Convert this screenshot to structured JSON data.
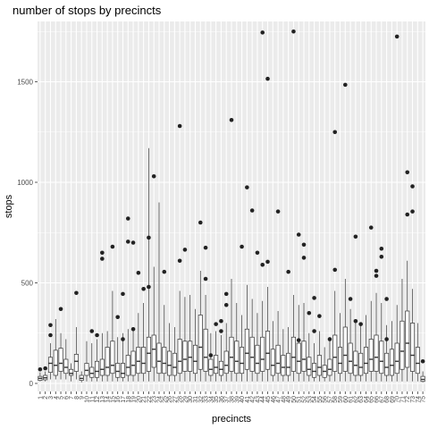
{
  "chart_data": {
    "type": "boxplot",
    "title": "number of stops by precincts",
    "xlabel": "precincts",
    "ylabel": "stops",
    "ylim": [
      -40,
      1800
    ],
    "yticks": [
      0,
      500,
      1000,
      1500
    ],
    "grid": true,
    "colors": {
      "panel": "#ebebeb",
      "grid_major": "#ffffff",
      "box_fill": "#ffffff",
      "box_line": "#333333",
      "outlier": "#222222"
    },
    "categories": [
      "1",
      "2",
      "3",
      "4",
      "5",
      "6",
      "7",
      "8",
      "9",
      "10",
      "11",
      "12",
      "13",
      "14",
      "15",
      "16",
      "17",
      "18",
      "19",
      "20",
      "21",
      "22",
      "23",
      "24",
      "25",
      "26",
      "27",
      "28",
      "29",
      "30",
      "31",
      "32",
      "33",
      "34",
      "35",
      "36",
      "37",
      "38",
      "39",
      "40",
      "41",
      "42",
      "43",
      "44",
      "45",
      "46",
      "47",
      "48",
      "49",
      "50",
      "51",
      "52",
      "53",
      "54",
      "55",
      "56",
      "57",
      "58",
      "59",
      "60",
      "61",
      "62",
      "63",
      "64",
      "65",
      "66",
      "67",
      "68",
      "69",
      "70",
      "71",
      "72",
      "73",
      "74",
      "75"
    ],
    "boxes": [
      {
        "min": 10,
        "q1": 15,
        "median": 25,
        "q3": 35,
        "max": 55,
        "outliers": [
          70
        ]
      },
      {
        "min": 10,
        "q1": 18,
        "median": 28,
        "q3": 40,
        "max": 60,
        "outliers": [
          75
        ]
      },
      {
        "min": 20,
        "q1": 55,
        "median": 100,
        "q3": 130,
        "max": 200,
        "outliers": [
          240,
          290
        ]
      },
      {
        "min": 20,
        "q1": 40,
        "median": 90,
        "q3": 165,
        "max": 320,
        "outliers": []
      },
      {
        "min": 20,
        "q1": 60,
        "median": 100,
        "q3": 175,
        "max": 250,
        "outliers": [
          370
        ]
      },
      {
        "min": 20,
        "q1": 50,
        "median": 80,
        "q3": 120,
        "max": 220,
        "outliers": []
      },
      {
        "min": 10,
        "q1": 40,
        "median": 50,
        "q3": 70,
        "max": 100,
        "outliers": []
      },
      {
        "min": 20,
        "q1": 60,
        "median": 110,
        "q3": 145,
        "max": 280,
        "outliers": [
          450
        ]
      },
      {
        "min": 5,
        "q1": 15,
        "median": 25,
        "q3": 40,
        "max": 60,
        "outliers": []
      },
      {
        "min": 10,
        "q1": 40,
        "median": 65,
        "q3": 100,
        "max": 210,
        "outliers": []
      },
      {
        "min": 10,
        "q1": 30,
        "median": 50,
        "q3": 80,
        "max": 200,
        "outliers": [
          260
        ]
      },
      {
        "min": 10,
        "q1": 30,
        "median": 60,
        "q3": 110,
        "max": 220,
        "outliers": [
          240
        ]
      },
      {
        "min": 10,
        "q1": 40,
        "median": 70,
        "q3": 120,
        "max": 250,
        "outliers": [
          620,
          650
        ]
      },
      {
        "min": 10,
        "q1": 40,
        "median": 80,
        "q3": 180,
        "max": 260,
        "outliers": []
      },
      {
        "min": 10,
        "q1": 50,
        "median": 90,
        "q3": 210,
        "max": 460,
        "outliers": [
          680
        ]
      },
      {
        "min": 10,
        "q1": 30,
        "median": 60,
        "q3": 100,
        "max": 230,
        "outliers": [
          330
        ]
      },
      {
        "min": 10,
        "q1": 30,
        "median": 50,
        "q3": 100,
        "max": 250,
        "outliers": [
          445,
          220
        ]
      },
      {
        "min": 10,
        "q1": 40,
        "median": 80,
        "q3": 140,
        "max": 270,
        "outliers": [
          820,
          705
        ]
      },
      {
        "min": 10,
        "q1": 40,
        "median": 90,
        "q3": 160,
        "max": 280,
        "outliers": [
          700,
          270
        ]
      },
      {
        "min": 10,
        "q1": 50,
        "median": 110,
        "q3": 180,
        "max": 350,
        "outliers": [
          550
        ]
      },
      {
        "min": 10,
        "q1": 50,
        "median": 100,
        "q3": 180,
        "max": 400,
        "outliers": [
          470
        ]
      },
      {
        "min": 10,
        "q1": 60,
        "median": 150,
        "q3": 230,
        "max": 1170,
        "outliers": [
          480,
          725
        ]
      },
      {
        "min": 10,
        "q1": 80,
        "median": 170,
        "q3": 240,
        "max": 580,
        "outliers": [
          1030
        ]
      },
      {
        "min": 10,
        "q1": 50,
        "median": 110,
        "q3": 200,
        "max": 900,
        "outliers": []
      },
      {
        "min": 10,
        "q1": 50,
        "median": 100,
        "q3": 180,
        "max": 390,
        "outliers": [
          555
        ]
      },
      {
        "min": 10,
        "q1": 40,
        "median": 90,
        "q3": 160,
        "max": 300,
        "outliers": []
      },
      {
        "min": 10,
        "q1": 40,
        "median": 80,
        "q3": 150,
        "max": 280,
        "outliers": []
      },
      {
        "min": 10,
        "q1": 50,
        "median": 110,
        "q3": 220,
        "max": 460,
        "outliers": [
          1280,
          610
        ]
      },
      {
        "min": 10,
        "q1": 60,
        "median": 120,
        "q3": 210,
        "max": 430,
        "outliers": [
          665
        ]
      },
      {
        "min": 10,
        "q1": 60,
        "median": 130,
        "q3": 210,
        "max": 440,
        "outliers": []
      },
      {
        "min": 10,
        "q1": 50,
        "median": 110,
        "q3": 190,
        "max": 370,
        "outliers": []
      },
      {
        "min": 10,
        "q1": 70,
        "median": 180,
        "q3": 340,
        "max": 560,
        "outliers": [
          800
        ]
      },
      {
        "min": 10,
        "q1": 60,
        "median": 130,
        "q3": 270,
        "max": 440,
        "outliers": [
          675,
          520
        ]
      },
      {
        "min": 10,
        "q1": 40,
        "median": 70,
        "q3": 120,
        "max": 250,
        "outliers": [
          140
        ]
      },
      {
        "min": 10,
        "q1": 50,
        "median": 80,
        "q3": 140,
        "max": 260,
        "outliers": [
          295
        ]
      },
      {
        "min": 10,
        "q1": 40,
        "median": 70,
        "q3": 110,
        "max": 240,
        "outliers": [
          310,
          260
        ]
      },
      {
        "min": 10,
        "q1": 50,
        "median": 90,
        "q3": 160,
        "max": 300,
        "outliers": [
          445,
          390
        ]
      },
      {
        "min": 10,
        "q1": 60,
        "median": 130,
        "q3": 230,
        "max": 520,
        "outliers": [
          1310
        ]
      },
      {
        "min": 10,
        "q1": 50,
        "median": 110,
        "q3": 210,
        "max": 400,
        "outliers": []
      },
      {
        "min": 10,
        "q1": 50,
        "median": 100,
        "q3": 180,
        "max": 340,
        "outliers": [
          680
        ]
      },
      {
        "min": 10,
        "q1": 70,
        "median": 150,
        "q3": 270,
        "max": 490,
        "outliers": [
          975
        ]
      },
      {
        "min": 10,
        "q1": 60,
        "median": 130,
        "q3": 230,
        "max": 420,
        "outliers": [
          860
        ]
      },
      {
        "min": 10,
        "q1": 50,
        "median": 100,
        "q3": 190,
        "max": 350,
        "outliers": [
          650
        ]
      },
      {
        "min": 10,
        "q1": 60,
        "median": 120,
        "q3": 230,
        "max": 410,
        "outliers": [
          1745,
          590
        ]
      },
      {
        "min": 10,
        "q1": 70,
        "median": 150,
        "q3": 260,
        "max": 480,
        "outliers": [
          1515,
          605
        ]
      },
      {
        "min": 10,
        "q1": 40,
        "median": 90,
        "q3": 170,
        "max": 310,
        "outliers": []
      },
      {
        "min": 10,
        "q1": 50,
        "median": 100,
        "q3": 190,
        "max": 360,
        "outliers": [
          855
        ]
      },
      {
        "min": 10,
        "q1": 40,
        "median": 80,
        "q3": 140,
        "max": 270,
        "outliers": []
      },
      {
        "min": 10,
        "q1": 40,
        "median": 80,
        "q3": 150,
        "max": 280,
        "outliers": [
          555
        ]
      },
      {
        "min": 10,
        "q1": 60,
        "median": 130,
        "q3": 230,
        "max": 440,
        "outliers": [
          1750
        ]
      },
      {
        "min": 10,
        "q1": 50,
        "median": 110,
        "q3": 200,
        "max": 390,
        "outliers": [
          740,
          215
        ]
      },
      {
        "min": 10,
        "q1": 60,
        "median": 120,
        "q3": 210,
        "max": 400,
        "outliers": [
          690,
          625
        ]
      },
      {
        "min": 10,
        "q1": 40,
        "median": 70,
        "q3": 130,
        "max": 250,
        "outliers": [
          350
        ]
      },
      {
        "min": 10,
        "q1": 30,
        "median": 60,
        "q3": 100,
        "max": 200,
        "outliers": [
          425,
          260
        ]
      },
      {
        "min": 10,
        "q1": 40,
        "median": 80,
        "q3": 140,
        "max": 260,
        "outliers": [
          335
        ]
      },
      {
        "min": 10,
        "q1": 30,
        "median": 60,
        "q3": 90,
        "max": 180,
        "outliers": []
      },
      {
        "min": 10,
        "q1": 40,
        "median": 70,
        "q3": 120,
        "max": 230,
        "outliers": [
          220
        ]
      },
      {
        "min": 10,
        "q1": 60,
        "median": 130,
        "q3": 240,
        "max": 460,
        "outliers": [
          1250,
          565
        ]
      },
      {
        "min": 10,
        "q1": 50,
        "median": 100,
        "q3": 180,
        "max": 350,
        "outliers": []
      },
      {
        "min": 10,
        "q1": 60,
        "median": 140,
        "q3": 280,
        "max": 520,
        "outliers": [
          1485
        ]
      },
      {
        "min": 10,
        "q1": 50,
        "median": 110,
        "q3": 200,
        "max": 370,
        "outliers": [
          420
        ]
      },
      {
        "min": 10,
        "q1": 40,
        "median": 90,
        "q3": 160,
        "max": 320,
        "outliers": [
          730,
          310
        ]
      },
      {
        "min": 10,
        "q1": 40,
        "median": 80,
        "q3": 150,
        "max": 290,
        "outliers": [
          295
        ]
      },
      {
        "min": 10,
        "q1": 50,
        "median": 100,
        "q3": 180,
        "max": 340,
        "outliers": []
      },
      {
        "min": 10,
        "q1": 60,
        "median": 120,
        "q3": 220,
        "max": 410,
        "outliers": [
          775
        ]
      },
      {
        "min": 10,
        "q1": 60,
        "median": 130,
        "q3": 240,
        "max": 450,
        "outliers": [
          560,
          535
        ]
      },
      {
        "min": 10,
        "q1": 50,
        "median": 110,
        "q3": 210,
        "max": 400,
        "outliers": [
          670,
          630
        ]
      },
      {
        "min": 10,
        "q1": 40,
        "median": 80,
        "q3": 150,
        "max": 290,
        "outliers": [
          420,
          220
        ]
      },
      {
        "min": 10,
        "q1": 40,
        "median": 90,
        "q3": 170,
        "max": 310,
        "outliers": []
      },
      {
        "min": 10,
        "q1": 50,
        "median": 110,
        "q3": 200,
        "max": 390,
        "outliers": [
          1725
        ]
      },
      {
        "min": 10,
        "q1": 70,
        "median": 160,
        "q3": 310,
        "max": 520,
        "outliers": []
      },
      {
        "min": 10,
        "q1": 80,
        "median": 200,
        "q3": 360,
        "max": 610,
        "outliers": [
          1050,
          840
        ]
      },
      {
        "min": 10,
        "q1": 60,
        "median": 140,
        "q3": 300,
        "max": 470,
        "outliers": [
          980,
          855
        ]
      },
      {
        "min": 10,
        "q1": 50,
        "median": 100,
        "q3": 180,
        "max": 300,
        "outliers": []
      },
      {
        "min": 5,
        "q1": 10,
        "median": 20,
        "q3": 35,
        "max": 60,
        "outliers": [
          110
        ]
      }
    ]
  }
}
